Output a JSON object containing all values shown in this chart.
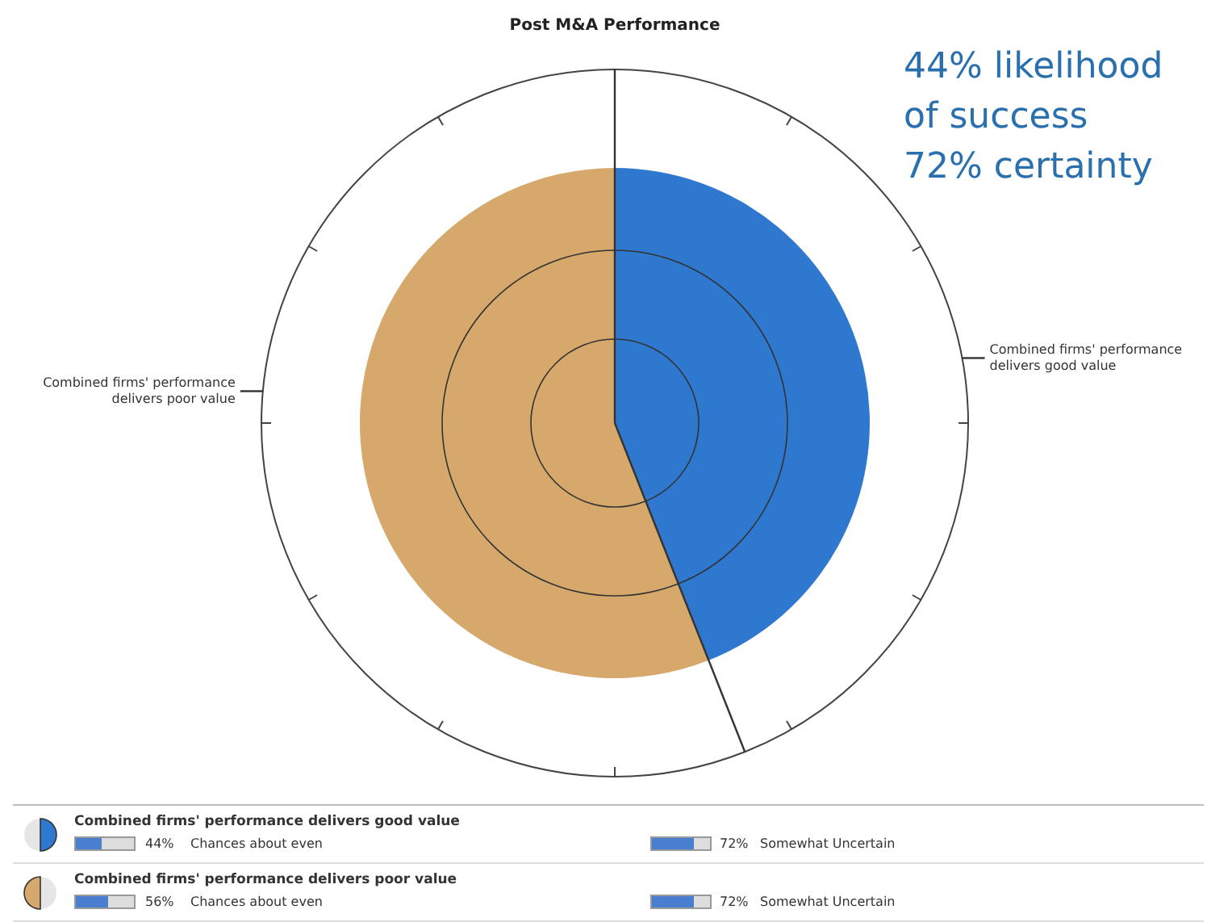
{
  "chart_data": {
    "type": "pie",
    "title": "Post M&A Performance",
    "categories": [
      "Combined firms' performance delivers good value",
      "Combined firms' performance delivers poor value"
    ],
    "values": [
      44,
      56
    ],
    "colors": [
      "#2f78cf",
      "#d6a86c"
    ],
    "annotations": [
      "44% likelihood of success 72% certainty",
      "Chances about even",
      "72%",
      "Somewhat Uncertain",
      "44%",
      "56%"
    ]
  }
}
